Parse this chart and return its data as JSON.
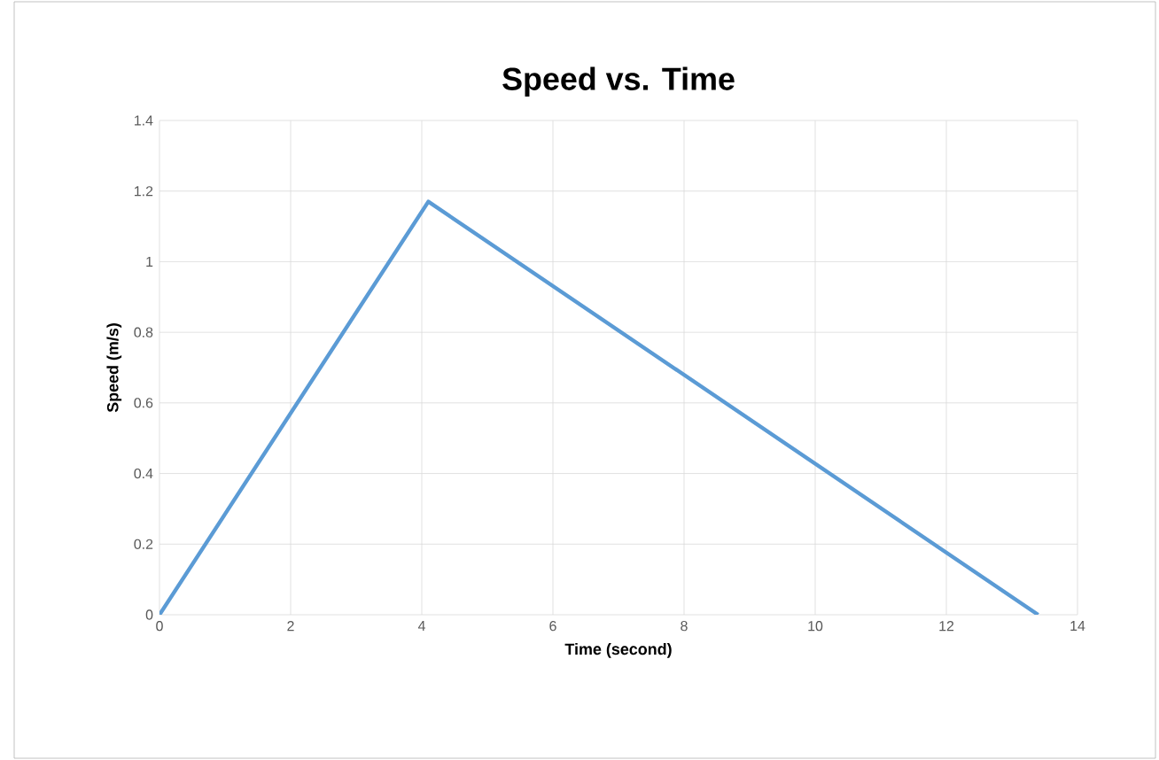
{
  "chart_data": {
    "type": "line",
    "title": "Speed vs. Time",
    "xlabel": "Time (second)",
    "ylabel": "Speed (m/s)",
    "x": [
      0,
      4.1,
      13.4
    ],
    "series": [
      {
        "color": "#5b9bd5",
        "values": [
          0,
          1.17,
          0
        ]
      }
    ],
    "xlim": [
      0,
      14
    ],
    "xticks": [
      0,
      2,
      4,
      6,
      8,
      10,
      12,
      14
    ],
    "ylim": [
      0,
      1.4
    ],
    "yticks": [
      0,
      0.2,
      0.4,
      0.6,
      0.8,
      1,
      1.2,
      1.4
    ],
    "grid": true,
    "marker": "none",
    "line_style": "solid"
  }
}
